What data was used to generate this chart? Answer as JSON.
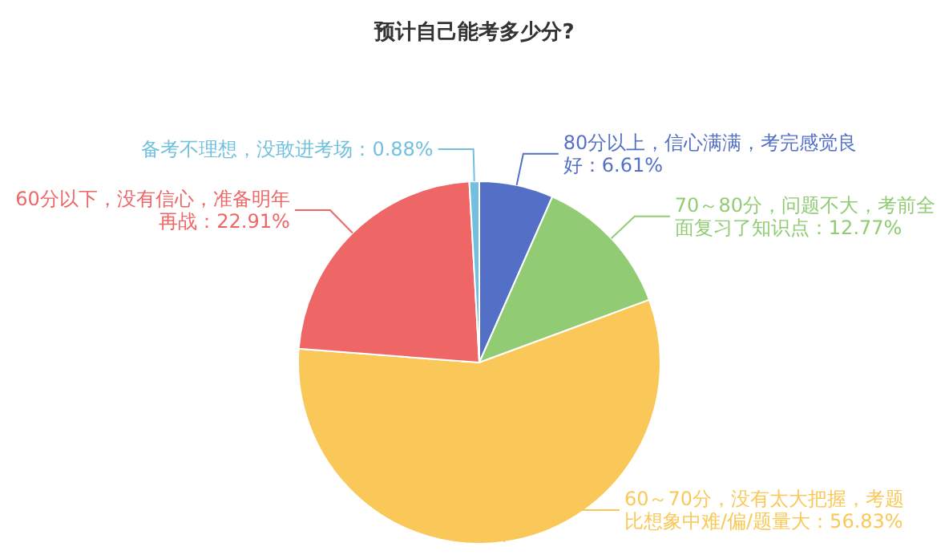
{
  "chart_data": {
    "type": "pie",
    "title": "预计自己能考多少分?",
    "categories": [
      "80分以上，信心满满，考完感觉良好",
      "70～80分，问题不大，考前全面复习了知识点",
      "60～70分，没有太大把握，考题比想象中难/偏/题量大",
      "60分以下，没有信心，准备明年再战",
      "备考不理想，没敢进考场"
    ],
    "values": [
      6.61,
      12.77,
      56.83,
      22.91,
      0.88
    ],
    "value_labels": [
      "6.61%",
      "12.77%",
      "56.83%",
      "22.91%",
      "0.88%"
    ],
    "colors": [
      "#5470c6",
      "#91cc75",
      "#fac858",
      "#ee6666",
      "#73c0de"
    ],
    "legend": false
  }
}
